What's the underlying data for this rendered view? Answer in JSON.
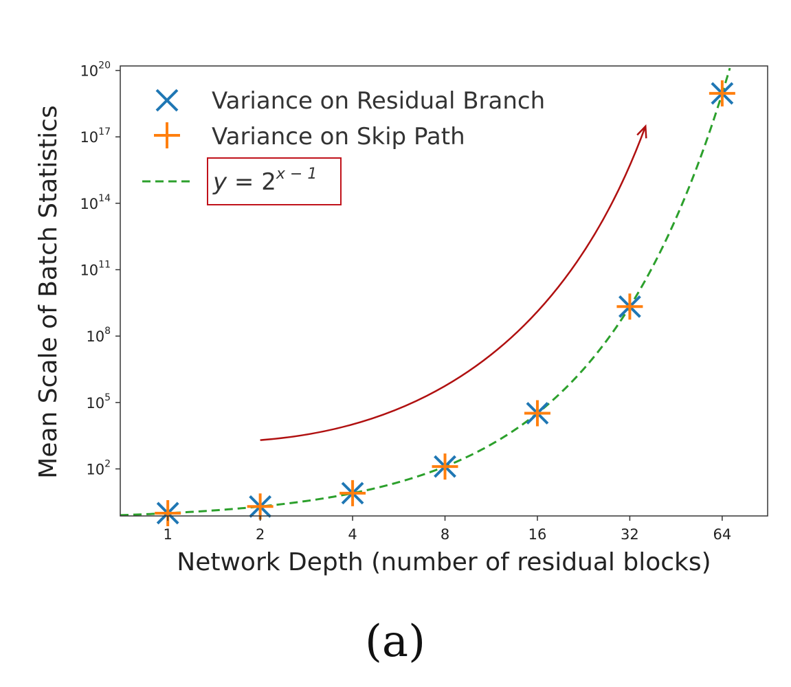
{
  "chart_data": {
    "type": "scatter",
    "xlabel": "Network Depth (number of residual blocks)",
    "ylabel": "Mean Scale of Batch Statistics",
    "x_scale": "log2",
    "y_scale": "log10",
    "x_ticks": [
      1,
      2,
      4,
      8,
      16,
      32,
      64
    ],
    "x_tick_labels": [
      "1",
      "2",
      "4",
      "8",
      "16",
      "32",
      "64"
    ],
    "y_ticks": [
      100,
      100000,
      100000000,
      100000000000,
      100000000000000,
      100000000000000000,
      100000000000000000000
    ],
    "y_tick_labels": [
      {
        "base": "10",
        "exp": "2"
      },
      {
        "base": "10",
        "exp": "5"
      },
      {
        "base": "10",
        "exp": "8"
      },
      {
        "base": "10",
        "exp": "11"
      },
      {
        "base": "10",
        "exp": "14"
      },
      {
        "base": "10",
        "exp": "17"
      },
      {
        "base": "10",
        "exp": "20"
      }
    ],
    "xlim": [
      0.7,
      90
    ],
    "ylim": [
      0.75,
      1.6e+20
    ],
    "grid": false,
    "legend_position": "top-left",
    "series": [
      {
        "name": "Variance on Residual Branch",
        "marker": "x",
        "color": "#1f77b4",
        "x": [
          1,
          2,
          4,
          8,
          16,
          32,
          64
        ],
        "y": [
          1,
          2,
          8,
          128,
          32768,
          2147483648,
          9.223e+18
        ]
      },
      {
        "name": "Variance on Skip Path",
        "marker": "+",
        "color": "#ff7f0e",
        "x": [
          1,
          2,
          4,
          8,
          16,
          32,
          64
        ],
        "y": [
          1,
          2,
          8,
          128,
          32768,
          2147483648,
          9.223e+18
        ]
      },
      {
        "name": "y = 2^(x − 1)",
        "label_parts": {
          "lhs": "y",
          "eq": " = ",
          "base": "2",
          "exp": "x − 1"
        },
        "line": "dashed",
        "color": "#2ca02c",
        "formula": "2^(x-1)"
      }
    ],
    "annotations": [
      {
        "type": "arrow",
        "color": "#b01010",
        "from": {
          "x": 2,
          "y": 2000.0
        },
        "to": {
          "x": 36,
          "y": 3e+17
        }
      },
      {
        "type": "box",
        "color": "#c0111a",
        "surrounds": "y = 2^(x − 1)"
      }
    ]
  },
  "caption": "(a)"
}
